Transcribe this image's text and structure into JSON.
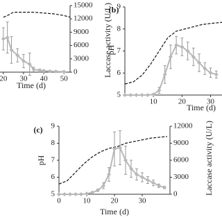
{
  "chart_data": [
    {
      "type": "line",
      "x_label": "Time (d)",
      "y2_label": "Laccase activity (U/L)",
      "xlim": [
        18,
        53
      ],
      "xticks": [
        20,
        30,
        40,
        50
      ],
      "ylim": [
        5,
        9
      ],
      "y2lim": [
        0,
        15000
      ],
      "y2ticks": [
        0,
        3000,
        6000,
        9000,
        12000,
        15000
      ],
      "series": [
        {
          "color": "#111111",
          "linestyle": "dashed",
          "axis": "y",
          "x": [
            20,
            22,
            25,
            30,
            35,
            40,
            45,
            50,
            53
          ],
          "values": [
            8.3,
            8.4,
            8.6,
            8.6,
            8.6,
            8.55,
            8.5,
            8.4,
            8.3
          ]
        },
        {
          "color": "#b8b8b8",
          "linestyle": "solid",
          "marker": "diamond",
          "axis": "y2",
          "x": [
            20,
            22,
            24,
            27,
            30,
            33,
            35,
            38,
            40,
            43,
            46,
            50
          ],
          "values": [
            7500,
            7800,
            5000,
            3800,
            2500,
            1800,
            600,
            400,
            300,
            200,
            150,
            100
          ],
          "errors": [
            2500,
            3500,
            3000,
            1500,
            1500,
            2500,
            500,
            300,
            200,
            150,
            100,
            100
          ]
        }
      ]
    },
    {
      "type": "line",
      "panel_label": "(b)",
      "x_label": "Time (d)",
      "y_label": "pH",
      "xlim": [
        0,
        34
      ],
      "xticks": [
        10,
        20,
        30
      ],
      "ylim": [
        5,
        9
      ],
      "yticks": [
        5,
        6,
        7,
        8,
        9
      ],
      "y2lim": [
        0,
        15000
      ],
      "series": [
        {
          "color": "#111111",
          "linestyle": "dashed",
          "axis": "y",
          "x": [
            0,
            3,
            6,
            9,
            12,
            15,
            18,
            21,
            24,
            27,
            30,
            34
          ],
          "values": [
            5.5,
            5.6,
            5.9,
            6.4,
            7.0,
            7.6,
            7.9,
            8.0,
            8.1,
            8.2,
            8.25,
            8.3
          ]
        },
        {
          "color": "#b8b8b8",
          "linestyle": "solid",
          "marker": "diamond",
          "axis": "y2",
          "x": [
            0,
            2,
            4,
            6,
            8,
            10,
            12,
            14,
            16,
            18,
            20,
            22,
            24,
            26,
            28,
            30,
            32
          ],
          "values": [
            0,
            0,
            0,
            0,
            0,
            100,
            800,
            3500,
            6500,
            8500,
            8200,
            7500,
            6500,
            5500,
            4500,
            3800,
            3500
          ],
          "errors": [
            0,
            0,
            0,
            0,
            0,
            100,
            500,
            1500,
            2000,
            1500,
            1500,
            1500,
            1500,
            1500,
            1000,
            800,
            600
          ]
        }
      ]
    },
    {
      "type": "line",
      "panel_label": "(c)",
      "x_label": "Time (d)",
      "y_label": "pH",
      "y2_label": "Laccase activity (U/L)",
      "xlim": [
        0,
        40
      ],
      "xticks": [
        0,
        10,
        20,
        30
      ],
      "ylim": [
        5,
        9
      ],
      "yticks": [
        5,
        6,
        7,
        8,
        9
      ],
      "y2lim": [
        0,
        12000
      ],
      "y2ticks": [
        0,
        3000,
        6000,
        9000,
        12000
      ],
      "series": [
        {
          "color": "#111111",
          "linestyle": "dashed",
          "axis": "y",
          "x": [
            0,
            3,
            6,
            9,
            12,
            15,
            18,
            21,
            24,
            27,
            30,
            33,
            36,
            39
          ],
          "values": [
            5.6,
            5.8,
            6.3,
            6.8,
            7.2,
            7.5,
            7.7,
            7.8,
            8.0,
            8.1,
            8.2,
            8.3,
            8.35,
            8.4
          ]
        },
        {
          "color": "#b8b8b8",
          "linestyle": "solid",
          "marker": "diamond",
          "axis": "y2",
          "x": [
            0,
            2,
            4,
            6,
            8,
            10,
            12,
            14,
            16,
            18,
            20,
            22,
            24,
            26,
            28,
            30,
            32,
            34,
            36,
            38
          ],
          "values": [
            0,
            0,
            0,
            0,
            0,
            100,
            300,
            700,
            1500,
            3500,
            8000,
            8200,
            6000,
            4500,
            3500,
            3000,
            2500,
            2000,
            1500,
            1200
          ],
          "errors": [
            0,
            0,
            0,
            0,
            0,
            50,
            100,
            200,
            500,
            1200,
            3000,
            3000,
            2500,
            1500,
            1000,
            800,
            600,
            500,
            300,
            200
          ]
        }
      ]
    }
  ]
}
